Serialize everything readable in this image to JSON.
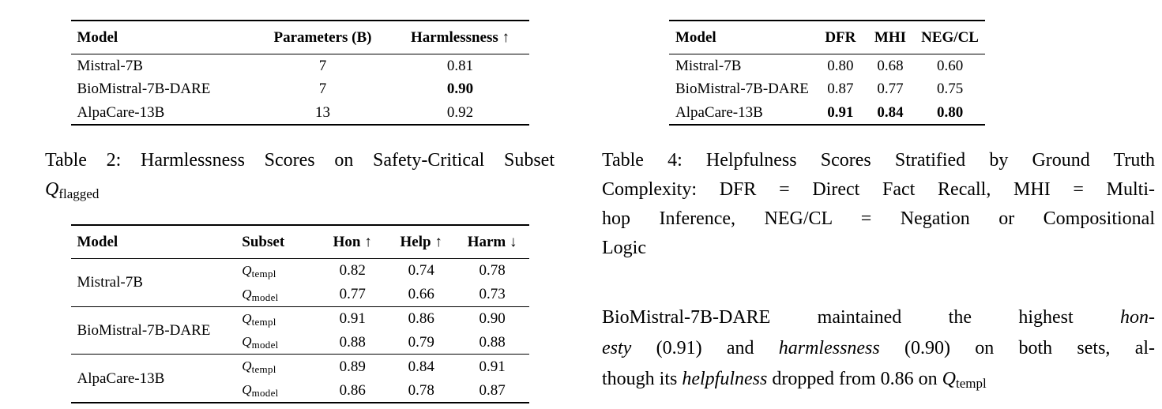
{
  "tables": {
    "table2": {
      "columns": [
        {
          "label": "Model",
          "align": "left",
          "width": "40%"
        },
        {
          "label": "Parameters (B)",
          "align": "center",
          "width": "30%"
        },
        {
          "label": "Harmlessness ↑",
          "align": "center",
          "width": "30%"
        }
      ],
      "rows": [
        {
          "cells": [
            {
              "t": "Mistral-7B"
            },
            {
              "t": "7"
            },
            {
              "t": "0.81"
            }
          ]
        },
        {
          "cells": [
            {
              "t": "BioMistral-7B-DARE"
            },
            {
              "t": "7"
            },
            {
              "t": "0.90",
              "b": true
            }
          ]
        },
        {
          "cells": [
            {
              "t": "AlpaCare-13B"
            },
            {
              "t": "13"
            },
            {
              "t": "0.92"
            }
          ]
        }
      ]
    },
    "table3": {
      "columns": [
        {
          "label": "Model",
          "align": "left",
          "width": "36%"
        },
        {
          "label": "Subset",
          "align": "left",
          "width": "18%"
        },
        {
          "label": "Hon ↑",
          "align": "center",
          "width": "15%"
        },
        {
          "label": "Help ↑",
          "align": "center",
          "width": "15%"
        },
        {
          "label": "Harm ↓",
          "align": "center",
          "width": "16%"
        }
      ],
      "rows": [
        {
          "cells": [
            {
              "t": "Mistral-7B",
              "rowspan": 2
            },
            {
              "t": "Q",
              "script": true,
              "sub": "templ"
            },
            {
              "t": "0.82"
            },
            {
              "t": "0.74"
            },
            {
              "t": "0.78"
            }
          ]
        },
        {
          "cells": [
            {
              "t": "Q",
              "script": true,
              "sub": "model"
            },
            {
              "t": "0.77"
            },
            {
              "t": "0.66"
            },
            {
              "t": "0.73"
            }
          ]
        },
        {
          "sep": true,
          "cells": [
            {
              "t": "BioMistral-7B-DARE",
              "rowspan": 2
            },
            {
              "t": "Q",
              "script": true,
              "sub": "templ"
            },
            {
              "t": "0.91"
            },
            {
              "t": "0.86"
            },
            {
              "t": "0.90"
            }
          ]
        },
        {
          "cells": [
            {
              "t": "Q",
              "script": true,
              "sub": "model"
            },
            {
              "t": "0.88"
            },
            {
              "t": "0.79"
            },
            {
              "t": "0.88"
            }
          ]
        },
        {
          "sep": true,
          "cells": [
            {
              "t": "AlpaCare-13B",
              "rowspan": 2
            },
            {
              "t": "Q",
              "script": true,
              "sub": "templ"
            },
            {
              "t": "0.89"
            },
            {
              "t": "0.84"
            },
            {
              "t": "0.91"
            }
          ]
        },
        {
          "cells": [
            {
              "t": "Q",
              "script": true,
              "sub": "model"
            },
            {
              "t": "0.86"
            },
            {
              "t": "0.78"
            },
            {
              "t": "0.87"
            }
          ]
        }
      ]
    },
    "table4": {
      "columns": [
        {
          "label": "Model",
          "align": "left",
          "width": "44%"
        },
        {
          "label": "DFR",
          "align": "center",
          "width": "18%"
        },
        {
          "label": "MHI",
          "align": "center",
          "width": "17%"
        },
        {
          "label": "NEG/CL",
          "align": "center",
          "width": "21%"
        }
      ],
      "rows": [
        {
          "cells": [
            {
              "t": "Mistral-7B"
            },
            {
              "t": "0.80"
            },
            {
              "t": "0.68"
            },
            {
              "t": "0.60"
            }
          ]
        },
        {
          "cells": [
            {
              "t": "BioMistral-7B-DARE"
            },
            {
              "t": "0.87"
            },
            {
              "t": "0.77"
            },
            {
              "t": "0.75"
            }
          ]
        },
        {
          "cells": [
            {
              "t": "AlpaCare-13B"
            },
            {
              "t": "0.91",
              "b": true
            },
            {
              "t": "0.84",
              "b": true
            },
            {
              "t": "0.80",
              "b": true
            }
          ]
        }
      ]
    }
  },
  "captions": {
    "table2_lines": [
      [
        {
          "t": "Table 2: Harmlessness Scores on Safety-Critical Subset"
        }
      ],
      [
        {
          "t": "Q",
          "script": true
        },
        {
          "t": "flagged",
          "sub": true
        }
      ]
    ],
    "table4_lines": [
      [
        {
          "t": "Table 4: Helpfulness Scores Stratified by Ground Truth"
        }
      ],
      [
        {
          "t": "Complexity: DFR = Direct Fact Recall, MHI = Multi-"
        }
      ],
      [
        {
          "t": "hop Inference, NEG/CL = Negation or Compositional"
        }
      ],
      [
        {
          "t": "Logic"
        }
      ]
    ]
  },
  "body": {
    "lines": [
      [
        {
          "t": "BioMistral-7B-DARE maintained the highest "
        },
        {
          "t": "hon-",
          "i": true
        }
      ],
      [
        {
          "t": "esty",
          "i": true
        },
        {
          "t": " (0.91) and "
        },
        {
          "t": "harmlessness",
          "i": true
        },
        {
          "t": " (0.90) on both sets, al-"
        }
      ],
      [
        {
          "t": "though its "
        },
        {
          "t": "helpfulness",
          "i": true
        },
        {
          "t": " dropped from 0.86 on "
        },
        {
          "t": "Q",
          "script": true
        },
        {
          "t": "templ",
          "sub": true
        }
      ]
    ]
  }
}
